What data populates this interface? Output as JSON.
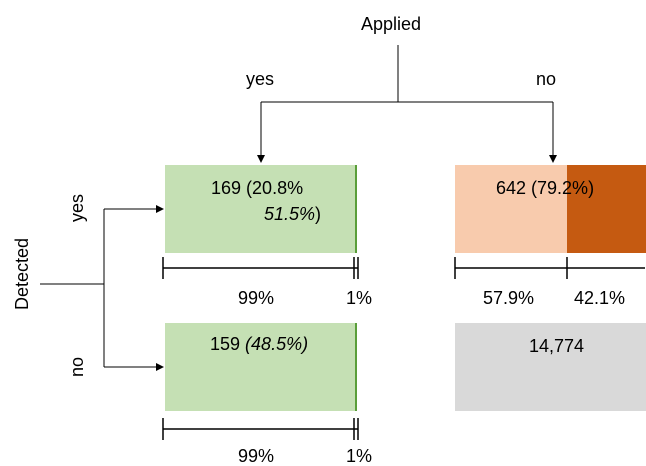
{
  "header": "Applied",
  "columns": {
    "yes": "yes",
    "no": "no"
  },
  "side_header": "Detected",
  "rows": {
    "yes": "yes",
    "no": "no"
  },
  "colors": {
    "green": "#c5e0b4",
    "green_edge": "#5a9e3a",
    "peach": "#f8cbad",
    "orange": "#c55a11",
    "gray": "#d9d9d9",
    "line": "#000000"
  },
  "cells": {
    "yes_yes": {
      "count": "169",
      "line1_rest": " (20.8%",
      "line2": "51.5%",
      "line2_close": ")",
      "split": [
        99,
        1
      ],
      "split_labels": [
        "99%",
        "1%"
      ]
    },
    "yes_no": {
      "text": "642 (79.2%)",
      "split": [
        57.9,
        42.1
      ],
      "split_labels": [
        "57.9%",
        "42.1%"
      ]
    },
    "no_yes": {
      "count": "159 ",
      "italic": "(48.5%)",
      "split": [
        99,
        1
      ],
      "split_labels": [
        "99%",
        "1%"
      ]
    },
    "no_no": {
      "text": "14,774"
    }
  }
}
